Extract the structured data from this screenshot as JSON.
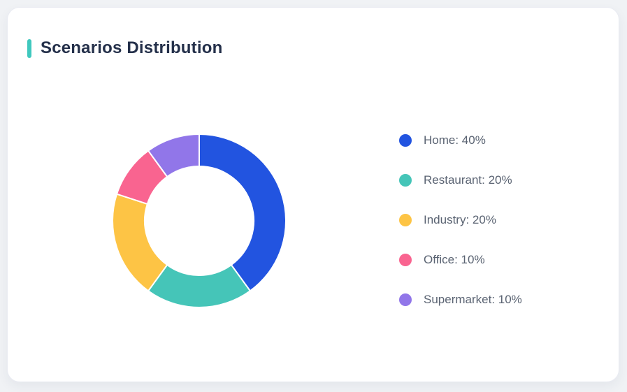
{
  "page": {
    "background_color": "#f0f2f5"
  },
  "card": {
    "title": "Scenarios Distribution",
    "accent_color": "#3fc8be",
    "title_color": "#24304a",
    "background_color": "#ffffff"
  },
  "chart_data": {
    "type": "donut",
    "title": "Scenarios Distribution",
    "categories": [
      "Home",
      "Restaurant",
      "Industry",
      "Office",
      "Supermarket"
    ],
    "values": [
      40,
      20,
      20,
      10,
      10
    ],
    "unit": "%",
    "colors": [
      "#2254e0",
      "#45c5b8",
      "#fdc445",
      "#f96490",
      "#9176e9"
    ],
    "legend_labels": [
      "Home: 40%",
      "Restaurant: 20%",
      "Industry: 20%",
      "Office: 10%",
      "Supermarket: 10%"
    ],
    "legend_position": "right",
    "start_angle_deg": 0,
    "direction": "clockwise",
    "inner_radius_ratio": 0.62,
    "outer_radius_px": 124,
    "inner_radius_px": 78,
    "segment_gap_color": "#ffffff",
    "legend_text_color": "#5a6372"
  }
}
